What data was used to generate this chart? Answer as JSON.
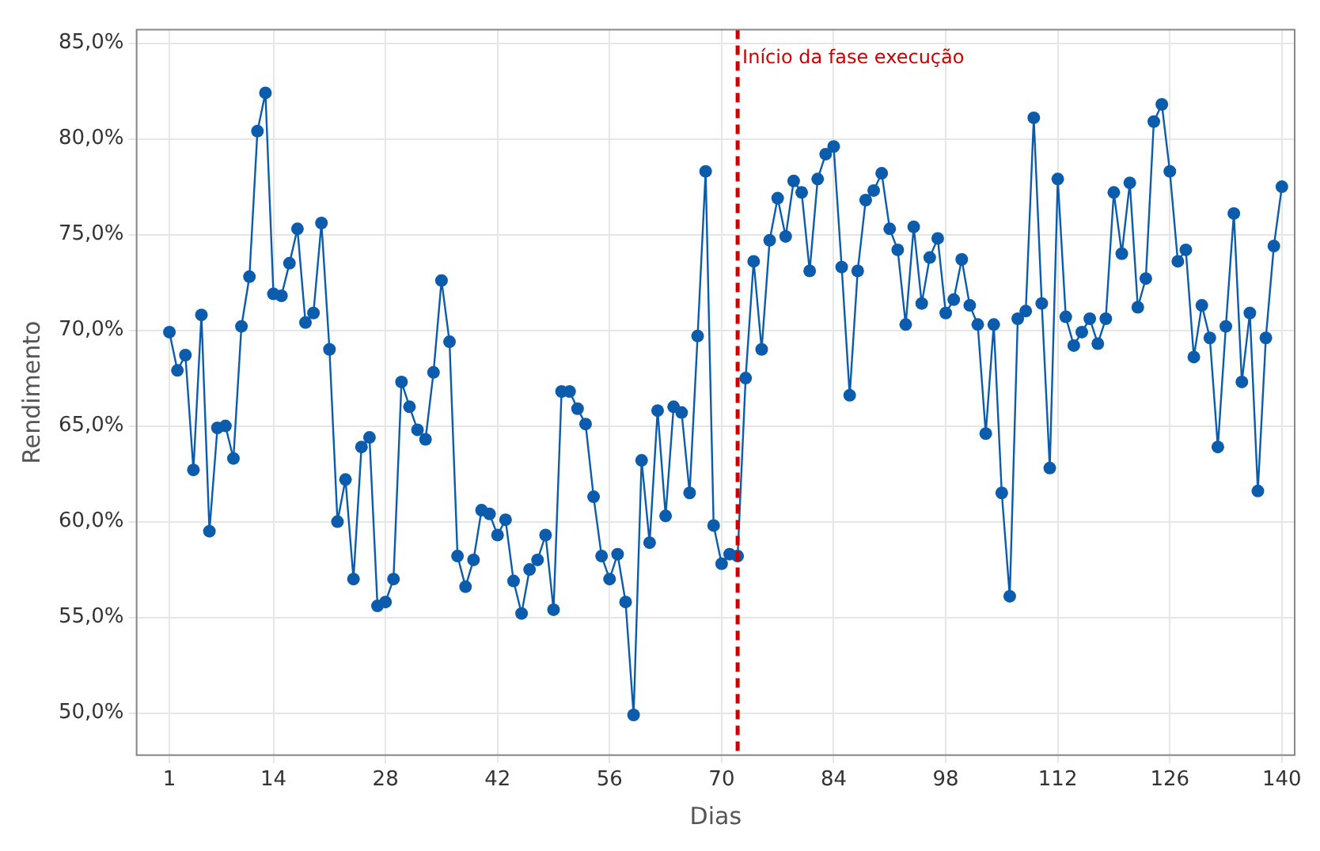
{
  "chart_data": {
    "type": "line",
    "xlabel": "Dias",
    "ylabel": "Rendimento",
    "x": [
      1,
      2,
      3,
      4,
      5,
      6,
      7,
      8,
      9,
      10,
      11,
      12,
      13,
      14,
      15,
      16,
      17,
      18,
      19,
      20,
      21,
      22,
      23,
      24,
      25,
      26,
      27,
      28,
      29,
      30,
      31,
      32,
      33,
      34,
      35,
      36,
      37,
      38,
      39,
      40,
      41,
      42,
      43,
      44,
      45,
      46,
      47,
      48,
      49,
      50,
      51,
      52,
      53,
      54,
      55,
      56,
      57,
      58,
      59,
      60,
      61,
      62,
      63,
      64,
      65,
      66,
      67,
      68,
      69,
      70,
      71,
      72,
      73,
      74,
      75,
      76,
      77,
      78,
      79,
      80,
      81,
      82,
      83,
      84,
      85,
      86,
      87,
      88,
      89,
      90,
      91,
      92,
      93,
      94,
      95,
      96,
      97,
      98,
      99,
      100,
      101,
      102,
      103,
      104,
      105,
      106,
      107,
      108,
      109,
      110,
      111,
      112,
      113,
      114,
      115,
      116,
      117,
      118,
      119,
      120,
      121,
      122,
      123,
      124,
      125,
      126,
      127,
      128,
      129,
      130,
      131,
      132,
      133,
      134,
      135,
      136,
      137,
      138,
      139,
      140
    ],
    "series": [
      {
        "color": "#0b5cad",
        "values": [
          69.9,
          67.9,
          68.7,
          62.7,
          70.8,
          59.5,
          64.9,
          65.0,
          63.3,
          70.2,
          72.8,
          80.4,
          82.4,
          71.9,
          71.8,
          73.5,
          75.3,
          70.4,
          70.9,
          75.6,
          69.0,
          60.0,
          62.2,
          57.0,
          63.9,
          64.4,
          55.6,
          55.8,
          57.0,
          67.3,
          66.0,
          64.8,
          64.3,
          67.8,
          72.6,
          69.4,
          58.2,
          56.6,
          58.0,
          60.6,
          60.4,
          59.3,
          60.1,
          56.9,
          55.2,
          57.5,
          58.0,
          59.3,
          55.4,
          66.8,
          66.8,
          65.9,
          65.1,
          61.3,
          58.2,
          57.0,
          58.3,
          55.8,
          49.9,
          63.2,
          58.9,
          65.8,
          60.3,
          66.0,
          65.7,
          61.5,
          69.7,
          78.3,
          59.8,
          57.8,
          58.3,
          58.2,
          67.5,
          73.6,
          69.0,
          74.7,
          76.9,
          74.9,
          77.8,
          77.2,
          73.1,
          77.9,
          79.2,
          79.6,
          73.3,
          66.6,
          73.1,
          76.8,
          77.3,
          78.2,
          75.3,
          74.2,
          70.3,
          75.4,
          71.4,
          73.8,
          74.8,
          70.9,
          71.6,
          73.7,
          71.3,
          70.3,
          64.6,
          70.3,
          61.5,
          56.1,
          70.6,
          71.0,
          81.1,
          71.4,
          62.8,
          77.9,
          70.7,
          69.2,
          69.9,
          70.6,
          69.3,
          70.6,
          77.2,
          74.0,
          77.7,
          71.2,
          72.7,
          80.9,
          81.8,
          78.3,
          73.6,
          74.2,
          68.6,
          71.3,
          69.6,
          63.9,
          70.2,
          76.1,
          67.3,
          70.9,
          61.6,
          69.6,
          74.4,
          77.5
        ]
      }
    ],
    "xlim": [
      -3.1,
      141.6
    ],
    "xticks": [
      1,
      14,
      28,
      42,
      56,
      70,
      84,
      98,
      112,
      126,
      140
    ],
    "ylim": [
      47.8,
      85.7
    ],
    "yticks": [
      {
        "value": 50,
        "label": "50,0%"
      },
      {
        "value": 55,
        "label": "55,0%"
      },
      {
        "value": 60,
        "label": "60,0%"
      },
      {
        "value": 65,
        "label": "65,0%"
      },
      {
        "value": 70,
        "label": "70,0%"
      },
      {
        "value": 75,
        "label": "75,0%"
      },
      {
        "value": 80,
        "label": "80,0%"
      },
      {
        "value": 85,
        "label": "85,0%"
      }
    ],
    "grid": true,
    "marker": "circle",
    "line_style": "solid",
    "legend": false,
    "ref_lines": [
      {
        "axis": "x",
        "value": 72,
        "label": "Início da fase execução",
        "color": "#cc0000",
        "line_style": "dashed"
      }
    ]
  }
}
